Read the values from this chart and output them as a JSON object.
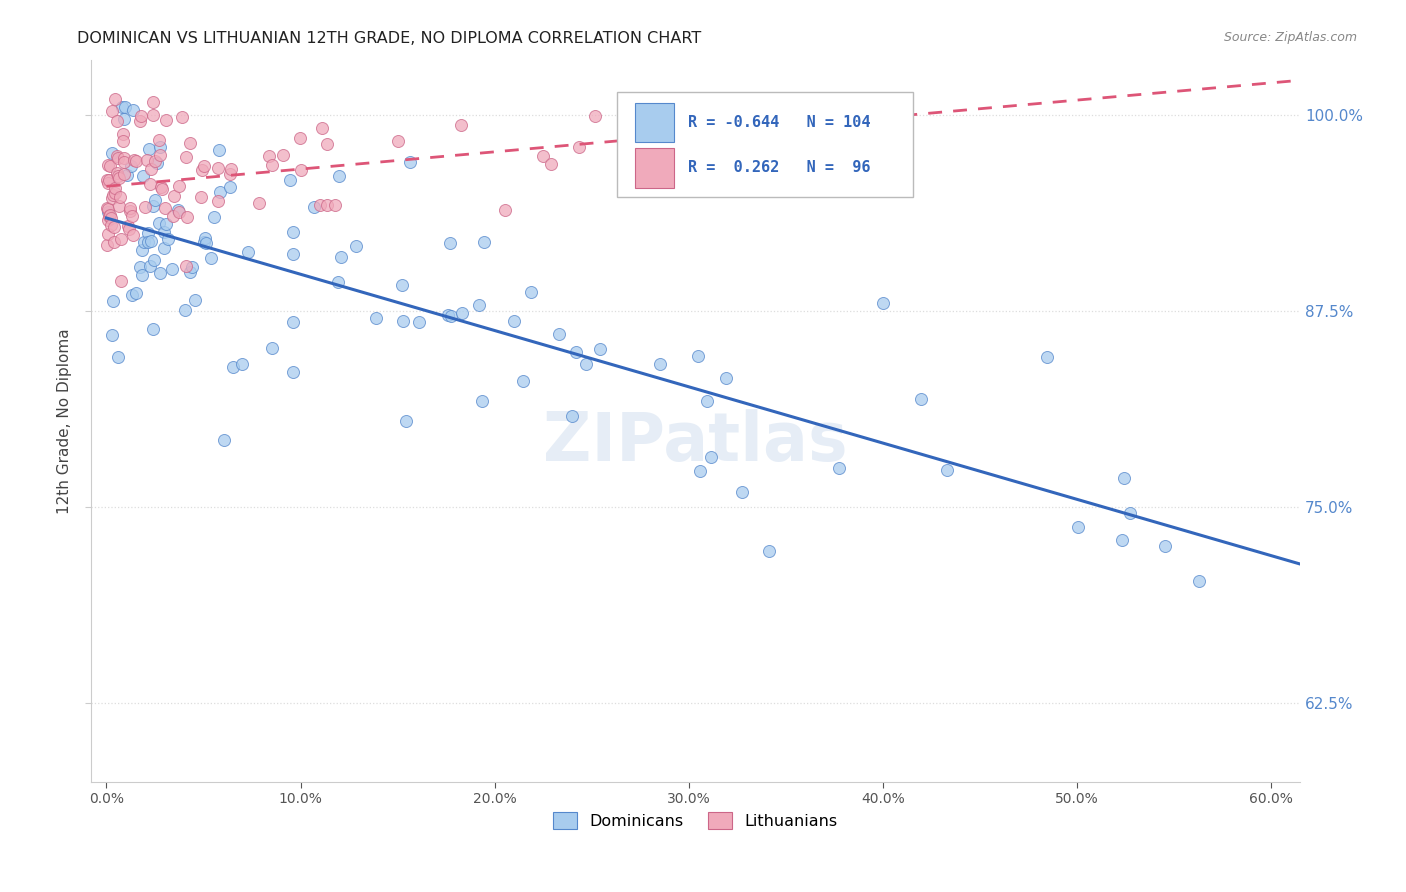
{
  "title": "DOMINICAN VS LITHUANIAN 12TH GRADE, NO DIPLOMA CORRELATION CHART",
  "source": "Source: ZipAtlas.com",
  "ylabel_label": "12th Grade, No Diploma",
  "xlim": [
    -0.008,
    0.615
  ],
  "ylim": [
    0.575,
    1.035
  ],
  "yticks": [
    0.625,
    0.75,
    0.875,
    1.0
  ],
  "xticks": [
    0.0,
    0.1,
    0.2,
    0.3,
    0.4,
    0.5,
    0.6
  ],
  "blue_R": -0.644,
  "blue_N": 104,
  "pink_R": 0.262,
  "pink_N": 96,
  "blue_color": "#A8CCEE",
  "pink_color": "#F0AABB",
  "blue_edge_color": "#5588CC",
  "pink_edge_color": "#CC6688",
  "blue_line_color": "#3366BB",
  "pink_line_color": "#DD5577",
  "background_color": "#FFFFFF",
  "watermark": "ZIPatlas",
  "legend_label_blue": "Dominicans",
  "legend_label_pink": "Lithuanians",
  "grid_color": "#DDDDDD",
  "right_tick_color": "#5588CC",
  "title_color": "#222222",
  "source_color": "#888888"
}
